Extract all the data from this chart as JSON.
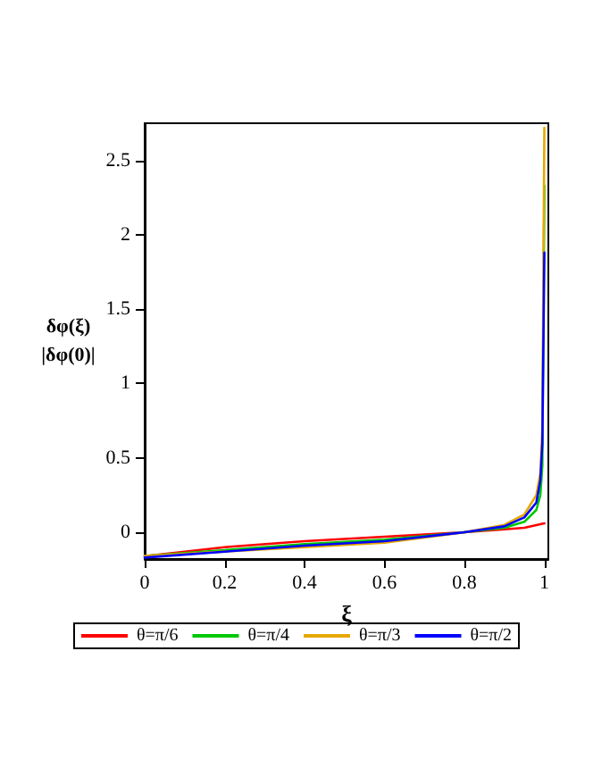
{
  "chart_data": {
    "type": "line",
    "xlabel": "ξ",
    "ylabel": "δφ(ξ)\n|δφ(0)|",
    "xlim": [
      0,
      1.01
    ],
    "ylim": [
      -0.18,
      2.75
    ],
    "xticks": [
      0,
      0.2,
      0.4,
      0.6,
      0.8,
      1
    ],
    "yticks": [
      0,
      0.5,
      1,
      1.5,
      2,
      2.5
    ],
    "grid": false,
    "legend": "bottom",
    "line_style": "solid",
    "marker": "none",
    "series": [
      {
        "name": "θ=π/6",
        "color": "#ff0000",
        "x": [
          0,
          0.2,
          0.4,
          0.6,
          0.8,
          0.9,
          0.95,
          1
        ],
        "values": [
          -0.16,
          -0.1,
          -0.06,
          -0.03,
          0,
          0.02,
          0.03,
          0.06
        ]
      },
      {
        "name": "θ=π/4",
        "color": "#00c800",
        "x": [
          0,
          0.2,
          0.4,
          0.6,
          0.8,
          0.9,
          0.95,
          0.98,
          0.99,
          0.995,
          1
        ],
        "values": [
          -0.16,
          -0.12,
          -0.08,
          -0.05,
          0,
          0.03,
          0.07,
          0.15,
          0.25,
          0.45,
          2.33
        ]
      },
      {
        "name": "θ=π/3",
        "color": "#e6a800",
        "x": [
          0,
          0.2,
          0.4,
          0.6,
          0.8,
          0.9,
          0.95,
          0.98,
          0.99,
          0.995,
          1
        ],
        "values": [
          -0.16,
          -0.13,
          -0.1,
          -0.07,
          0,
          0.05,
          0.12,
          0.25,
          0.4,
          0.7,
          2.72
        ]
      },
      {
        "name": "θ=π/2",
        "color": "#0000ff",
        "x": [
          0,
          0.2,
          0.4,
          0.6,
          0.8,
          0.9,
          0.95,
          0.98,
          0.99,
          0.995,
          1
        ],
        "values": [
          -0.17,
          -0.13,
          -0.09,
          -0.06,
          0,
          0.04,
          0.1,
          0.2,
          0.35,
          0.6,
          1.88
        ]
      }
    ]
  }
}
